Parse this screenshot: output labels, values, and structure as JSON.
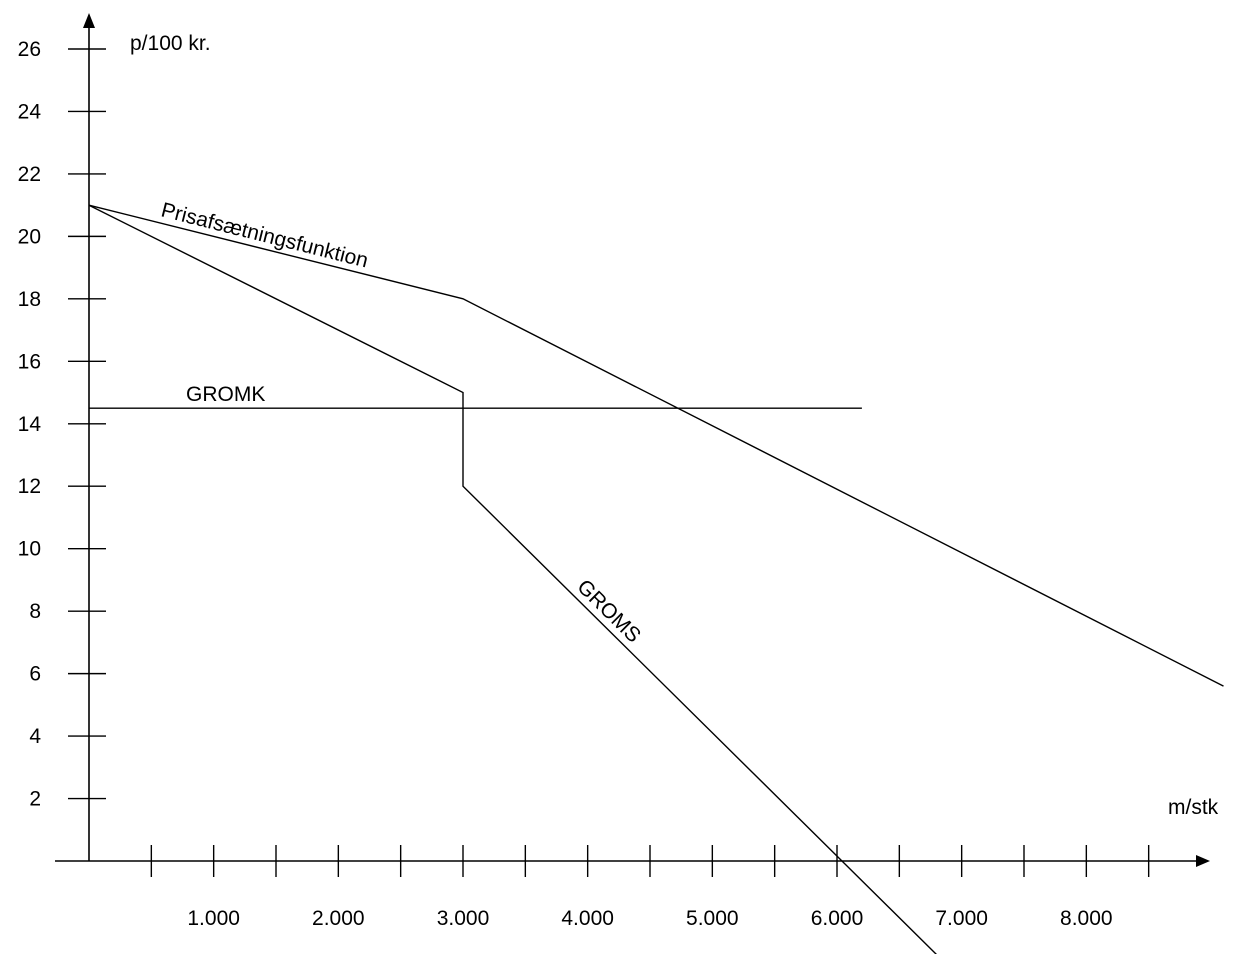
{
  "chart_data": {
    "type": "line",
    "title": "",
    "ylabel": "p/100 kr.",
    "xlabel": "m/stk",
    "xlim": [
      0,
      9000
    ],
    "ylim": [
      0,
      26
    ],
    "x_ticks": [
      500,
      1000,
      1500,
      2000,
      2500,
      3000,
      3500,
      4000,
      4500,
      5000,
      5500,
      6000,
      6500,
      7000,
      7500,
      8000,
      8500
    ],
    "x_tick_labels": [
      {
        "x": 1000,
        "label": "1.000"
      },
      {
        "x": 2000,
        "label": "2.000"
      },
      {
        "x": 3000,
        "label": "3.000"
      },
      {
        "x": 4000,
        "label": "4.000"
      },
      {
        "x": 5000,
        "label": "5.000"
      },
      {
        "x": 6000,
        "label": "6.000"
      },
      {
        "x": 7000,
        "label": "7.000"
      },
      {
        "x": 8000,
        "label": "8.000"
      }
    ],
    "y_tick_labels": [
      {
        "y": 2,
        "label": "2"
      },
      {
        "y": 4,
        "label": "4"
      },
      {
        "y": 6,
        "label": "6"
      },
      {
        "y": 8,
        "label": "8"
      },
      {
        "y": 10,
        "label": "10"
      },
      {
        "y": 12,
        "label": "12"
      },
      {
        "y": 14,
        "label": "14"
      },
      {
        "y": 16,
        "label": "16"
      },
      {
        "y": 18,
        "label": "18"
      },
      {
        "y": 20,
        "label": "20"
      },
      {
        "y": 22,
        "label": "22"
      },
      {
        "y": 24,
        "label": "24"
      },
      {
        "y": 26,
        "label": "26"
      }
    ],
    "grid": false,
    "series": [
      {
        "name": "Prisafsætningsfunktion",
        "points": [
          [
            0,
            21
          ],
          [
            3000,
            18
          ],
          [
            9100,
            5.6
          ]
        ]
      },
      {
        "name": "GROMS",
        "points": [
          [
            0,
            21
          ],
          [
            3000,
            15
          ],
          [
            3000,
            12
          ],
          [
            6800,
            -3
          ]
        ]
      },
      {
        "name": "GROMK",
        "points": [
          [
            0,
            14.5
          ],
          [
            6200,
            14.5
          ]
        ]
      }
    ]
  }
}
